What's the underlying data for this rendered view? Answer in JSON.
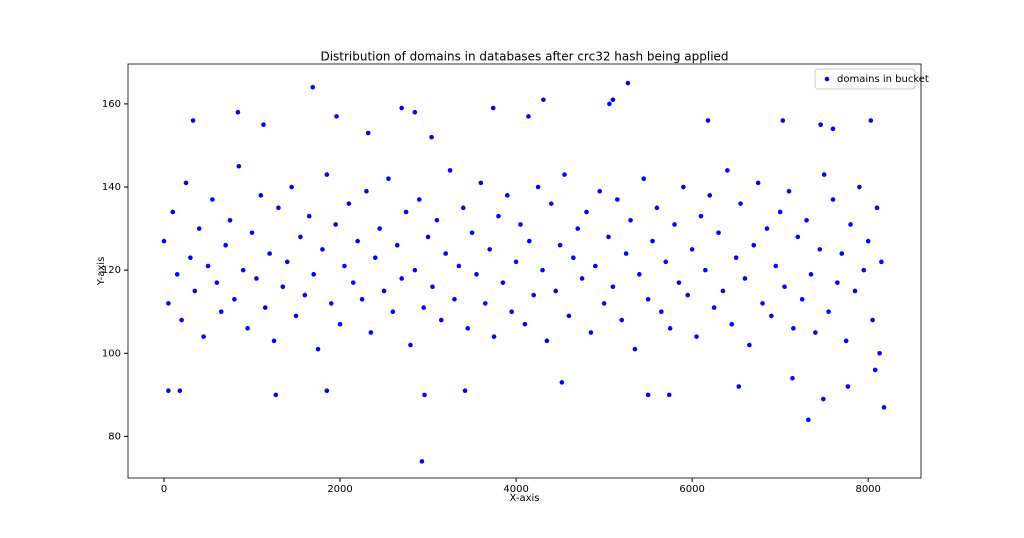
{
  "chart_data": {
    "type": "scatter",
    "title": "Distribution of domains in databases after crc32 hash being applied",
    "x_label": "X-axis",
    "y_label": "Y-axis",
    "xlim": [
      -409,
      8600
    ],
    "ylim": [
      70,
      169.6
    ],
    "xticks": [
      0,
      2000,
      4000,
      6000,
      8000
    ],
    "yticks": [
      80,
      100,
      120,
      140,
      160
    ],
    "grid": false,
    "legend_position": "upper-right",
    "series": [
      {
        "name": "domains in bucket",
        "color": "#0000ff",
        "x": [
          0,
          50,
          100,
          150,
          200,
          250,
          300,
          350,
          400,
          450,
          500,
          550,
          600,
          650,
          700,
          750,
          800,
          850,
          900,
          950,
          1000,
          1050,
          1100,
          1150,
          1200,
          1250,
          1300,
          1350,
          1400,
          1450,
          1500,
          1550,
          1600,
          1650,
          1700,
          1750,
          1800,
          1850,
          1900,
          1950,
          2000,
          2050,
          2100,
          2150,
          2200,
          2250,
          2300,
          2350,
          2400,
          2450,
          2500,
          2550,
          2600,
          2650,
          2700,
          2750,
          2800,
          2850,
          2900,
          2950,
          3000,
          3050,
          3100,
          3150,
          3200,
          3250,
          3300,
          3350,
          3400,
          3450,
          3500,
          3550,
          3600,
          3650,
          3700,
          3750,
          3800,
          3850,
          3900,
          3950,
          4000,
          4050,
          4100,
          4150,
          4200,
          4250,
          4300,
          4350,
          4400,
          4450,
          4500,
          4550,
          4600,
          4650,
          4700,
          4750,
          4800,
          4850,
          4900,
          4950,
          5000,
          5050,
          5100,
          5150,
          5200,
          5250,
          5300,
          5350,
          5400,
          5450,
          5500,
          5550,
          5600,
          5650,
          5700,
          5750,
          5800,
          5850,
          5900,
          5950,
          6000,
          6050,
          6100,
          6150,
          6200,
          6250,
          6300,
          6350,
          6400,
          6450,
          6500,
          6550,
          6600,
          6650,
          6700,
          6750,
          6800,
          6850,
          6900,
          6950,
          7000,
          7050,
          7100,
          7150,
          7200,
          7250,
          7300,
          7350,
          7400,
          7450,
          7500,
          7550,
          7600,
          7650,
          7700,
          7750,
          7800,
          7850,
          7900,
          7950,
          8000,
          8050,
          8100,
          8150,
          2930,
          8180,
          7320,
          1690,
          5270,
          4310,
          5100,
          5060,
          2700,
          2850,
          840,
          3740,
          330,
          1130,
          7030,
          8030,
          7460,
          7600,
          50,
          2960,
          1270,
          8130,
          5500,
          5740,
          3420,
          7140,
          7490,
          1850,
          180,
          8080,
          4520,
          6530,
          1960,
          4140,
          3040,
          6180,
          7770,
          2320
        ],
        "values": [
          127,
          112,
          134,
          119,
          108,
          141,
          123,
          115,
          130,
          104,
          121,
          137,
          117,
          110,
          126,
          132,
          113,
          145,
          120,
          106,
          129,
          118,
          138,
          111,
          124,
          103,
          135,
          116,
          122,
          140,
          109,
          128,
          114,
          133,
          119,
          101,
          125,
          143,
          112,
          131,
          107,
          121,
          136,
          117,
          127,
          113,
          139,
          105,
          123,
          130,
          115,
          142,
          110,
          126,
          118,
          134,
          102,
          120,
          137,
          111,
          128,
          116,
          132,
          108,
          124,
          144,
          113,
          121,
          135,
          106,
          129,
          119,
          141,
          112,
          125,
          104,
          133,
          117,
          138,
          110,
          122,
          131,
          107,
          127,
          114,
          140,
          120,
          103,
          136,
          115,
          126,
          143,
          109,
          123,
          130,
          118,
          134,
          105,
          121,
          139,
          112,
          128,
          116,
          137,
          108,
          124,
          132,
          101,
          119,
          142,
          113,
          127,
          135,
          110,
          122,
          106,
          131,
          117,
          140,
          114,
          125,
          104,
          133,
          120,
          138,
          111,
          129,
          115,
          144,
          107,
          123,
          136,
          118,
          102,
          126,
          141,
          112,
          130,
          109,
          121,
          134,
          116,
          139,
          106,
          128,
          113,
          132,
          119,
          105,
          125,
          143,
          110,
          137,
          117,
          124,
          103,
          131,
          115,
          140,
          120,
          127,
          108,
          135,
          122,
          74,
          87,
          84,
          164,
          165,
          161,
          161,
          160,
          159,
          158,
          158,
          159,
          156,
          155,
          156,
          156,
          155,
          154,
          91,
          90,
          90,
          100,
          90,
          90,
          91,
          94,
          89,
          91,
          91,
          96,
          93,
          92,
          157,
          157,
          152,
          156,
          92,
          153
        ]
      }
    ]
  }
}
